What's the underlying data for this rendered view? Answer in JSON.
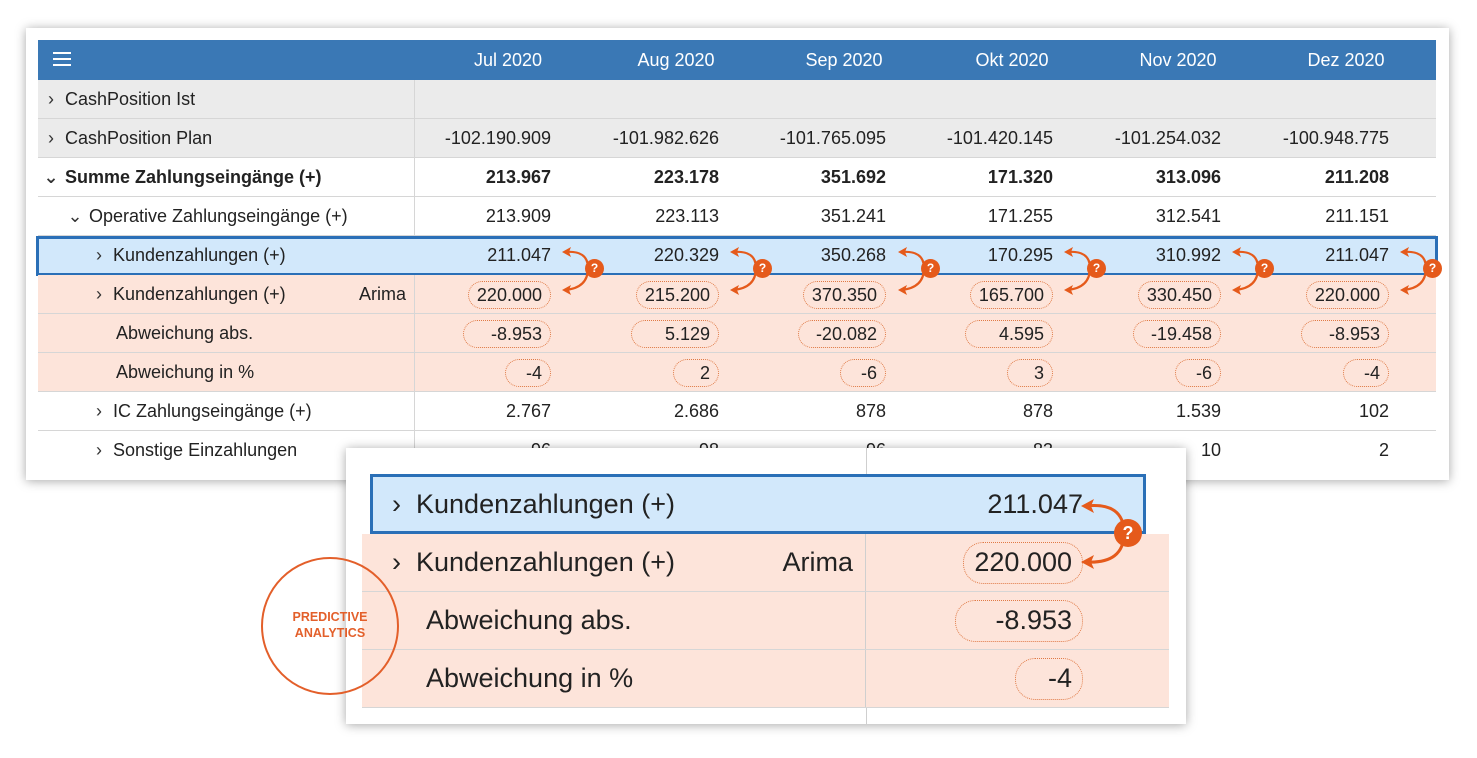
{
  "columns": [
    "Jul 2020",
    "Aug 2020",
    "Sep 2020",
    "Okt 2020",
    "Nov 2020",
    "Dez 2020"
  ],
  "rows": [
    {
      "label": "CashPosition Ist",
      "chevron": ">",
      "values": [
        "",
        "",
        "",
        "",
        "",
        ""
      ]
    },
    {
      "label": "CashPosition Plan",
      "chevron": ">",
      "values": [
        "-102.190.909",
        "-101.982.626",
        "-101.765.095",
        "-101.420.145",
        "-101.254.032",
        "-100.948.775"
      ]
    },
    {
      "label": "Summe Zahlungseingänge (+)",
      "chevron": "v",
      "values": [
        "213.967",
        "223.178",
        "351.692",
        "171.320",
        "313.096",
        "211.208"
      ]
    },
    {
      "label": "Operative Zahlungseingänge (+)",
      "chevron": "v",
      "values": [
        "213.909",
        "223.113",
        "351.241",
        "171.255",
        "312.541",
        "211.151"
      ]
    },
    {
      "label": "Kundenzahlungen (+)",
      "chevron": ">",
      "values": [
        "211.047",
        "220.329",
        "350.268",
        "170.295",
        "310.992",
        "211.047"
      ]
    },
    {
      "label": "Kundenzahlungen (+)",
      "chevron": ">",
      "tag": "Arima",
      "values": [
        "220.000",
        "215.200",
        "370.350",
        "165.700",
        "330.450",
        "220.000"
      ]
    },
    {
      "label": "Abweichung abs.",
      "values": [
        "-8.953",
        "5.129",
        "-20.082",
        "4.595",
        "-19.458",
        "-8.953"
      ]
    },
    {
      "label": "Abweichung in %",
      "values": [
        "-4",
        "2",
        "-6",
        "3",
        "-6",
        "-4"
      ]
    },
    {
      "label": "IC Zahlungseingänge (+)",
      "chevron": ">",
      "values": [
        "2.767",
        "2.686",
        "878",
        "878",
        "1.539",
        "102"
      ]
    },
    {
      "label": "Sonstige Einzahlungen",
      "chevron": ">",
      "values": [
        "96",
        "98",
        "96",
        "83",
        "10",
        "2"
      ]
    }
  ],
  "badge": "?",
  "zoom": {
    "rows": [
      {
        "label": "Kundenzahlungen (+)",
        "chevron": ">",
        "value": "211.047"
      },
      {
        "label": "Kundenzahlungen (+)",
        "chevron": ">",
        "tag": "Arima",
        "value": "220.000"
      },
      {
        "label": "Abweichung abs.",
        "value": "-8.953"
      },
      {
        "label": "Abweichung in %",
        "value": "-4"
      }
    ]
  },
  "predictive_label": [
    "PREDICTIVE",
    "ANALYTICS"
  ],
  "colors": {
    "header": "#3a78b5",
    "selection": "#2a6fb7",
    "accent": "#e55a1b",
    "peach": "#fde4da"
  }
}
